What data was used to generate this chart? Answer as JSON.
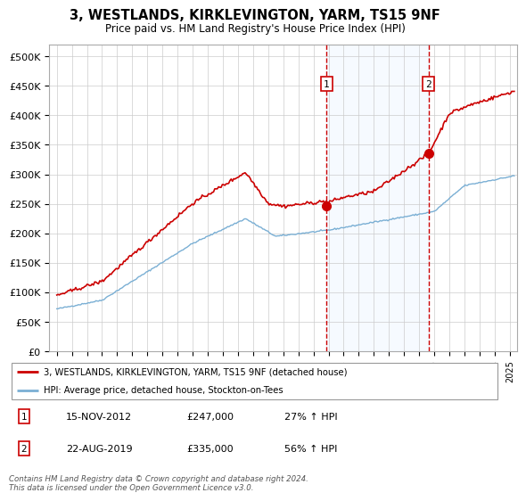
{
  "title": "3, WESTLANDS, KIRKLEVINGTON, YARM, TS15 9NF",
  "subtitle": "Price paid vs. HM Land Registry's House Price Index (HPI)",
  "ylabel_ticks": [
    "£0",
    "£50K",
    "£100K",
    "£150K",
    "£200K",
    "£250K",
    "£300K",
    "£350K",
    "£400K",
    "£450K",
    "£500K"
  ],
  "ytick_values": [
    0,
    50000,
    100000,
    150000,
    200000,
    250000,
    300000,
    350000,
    400000,
    450000,
    500000
  ],
  "xlim_start": 1994.5,
  "xlim_end": 2025.5,
  "ylim": [
    0,
    520000
  ],
  "marker1_x": 2012.87,
  "marker1_y": 247000,
  "marker2_x": 2019.63,
  "marker2_y": 335000,
  "marker1_label": "1",
  "marker2_label": "2",
  "red_line_color": "#cc0000",
  "blue_line_color": "#7aafd4",
  "shaded_color": "#ddeeff",
  "annotation_box_color": "#cc0000",
  "legend_line1": "3, WESTLANDS, KIRKLEVINGTON, YARM, TS15 9NF (detached house)",
  "legend_line2": "HPI: Average price, detached house, Stockton-on-Tees",
  "table_row1": [
    "1",
    "15-NOV-2012",
    "£247,000",
    "27% ↑ HPI"
  ],
  "table_row2": [
    "2",
    "22-AUG-2019",
    "£335,000",
    "56% ↑ HPI"
  ],
  "footnote": "Contains HM Land Registry data © Crown copyright and database right 2024.\nThis data is licensed under the Open Government Licence v3.0.",
  "background_color": "#ffffff",
  "plot_bg_color": "#ffffff",
  "grid_color": "#cccccc"
}
